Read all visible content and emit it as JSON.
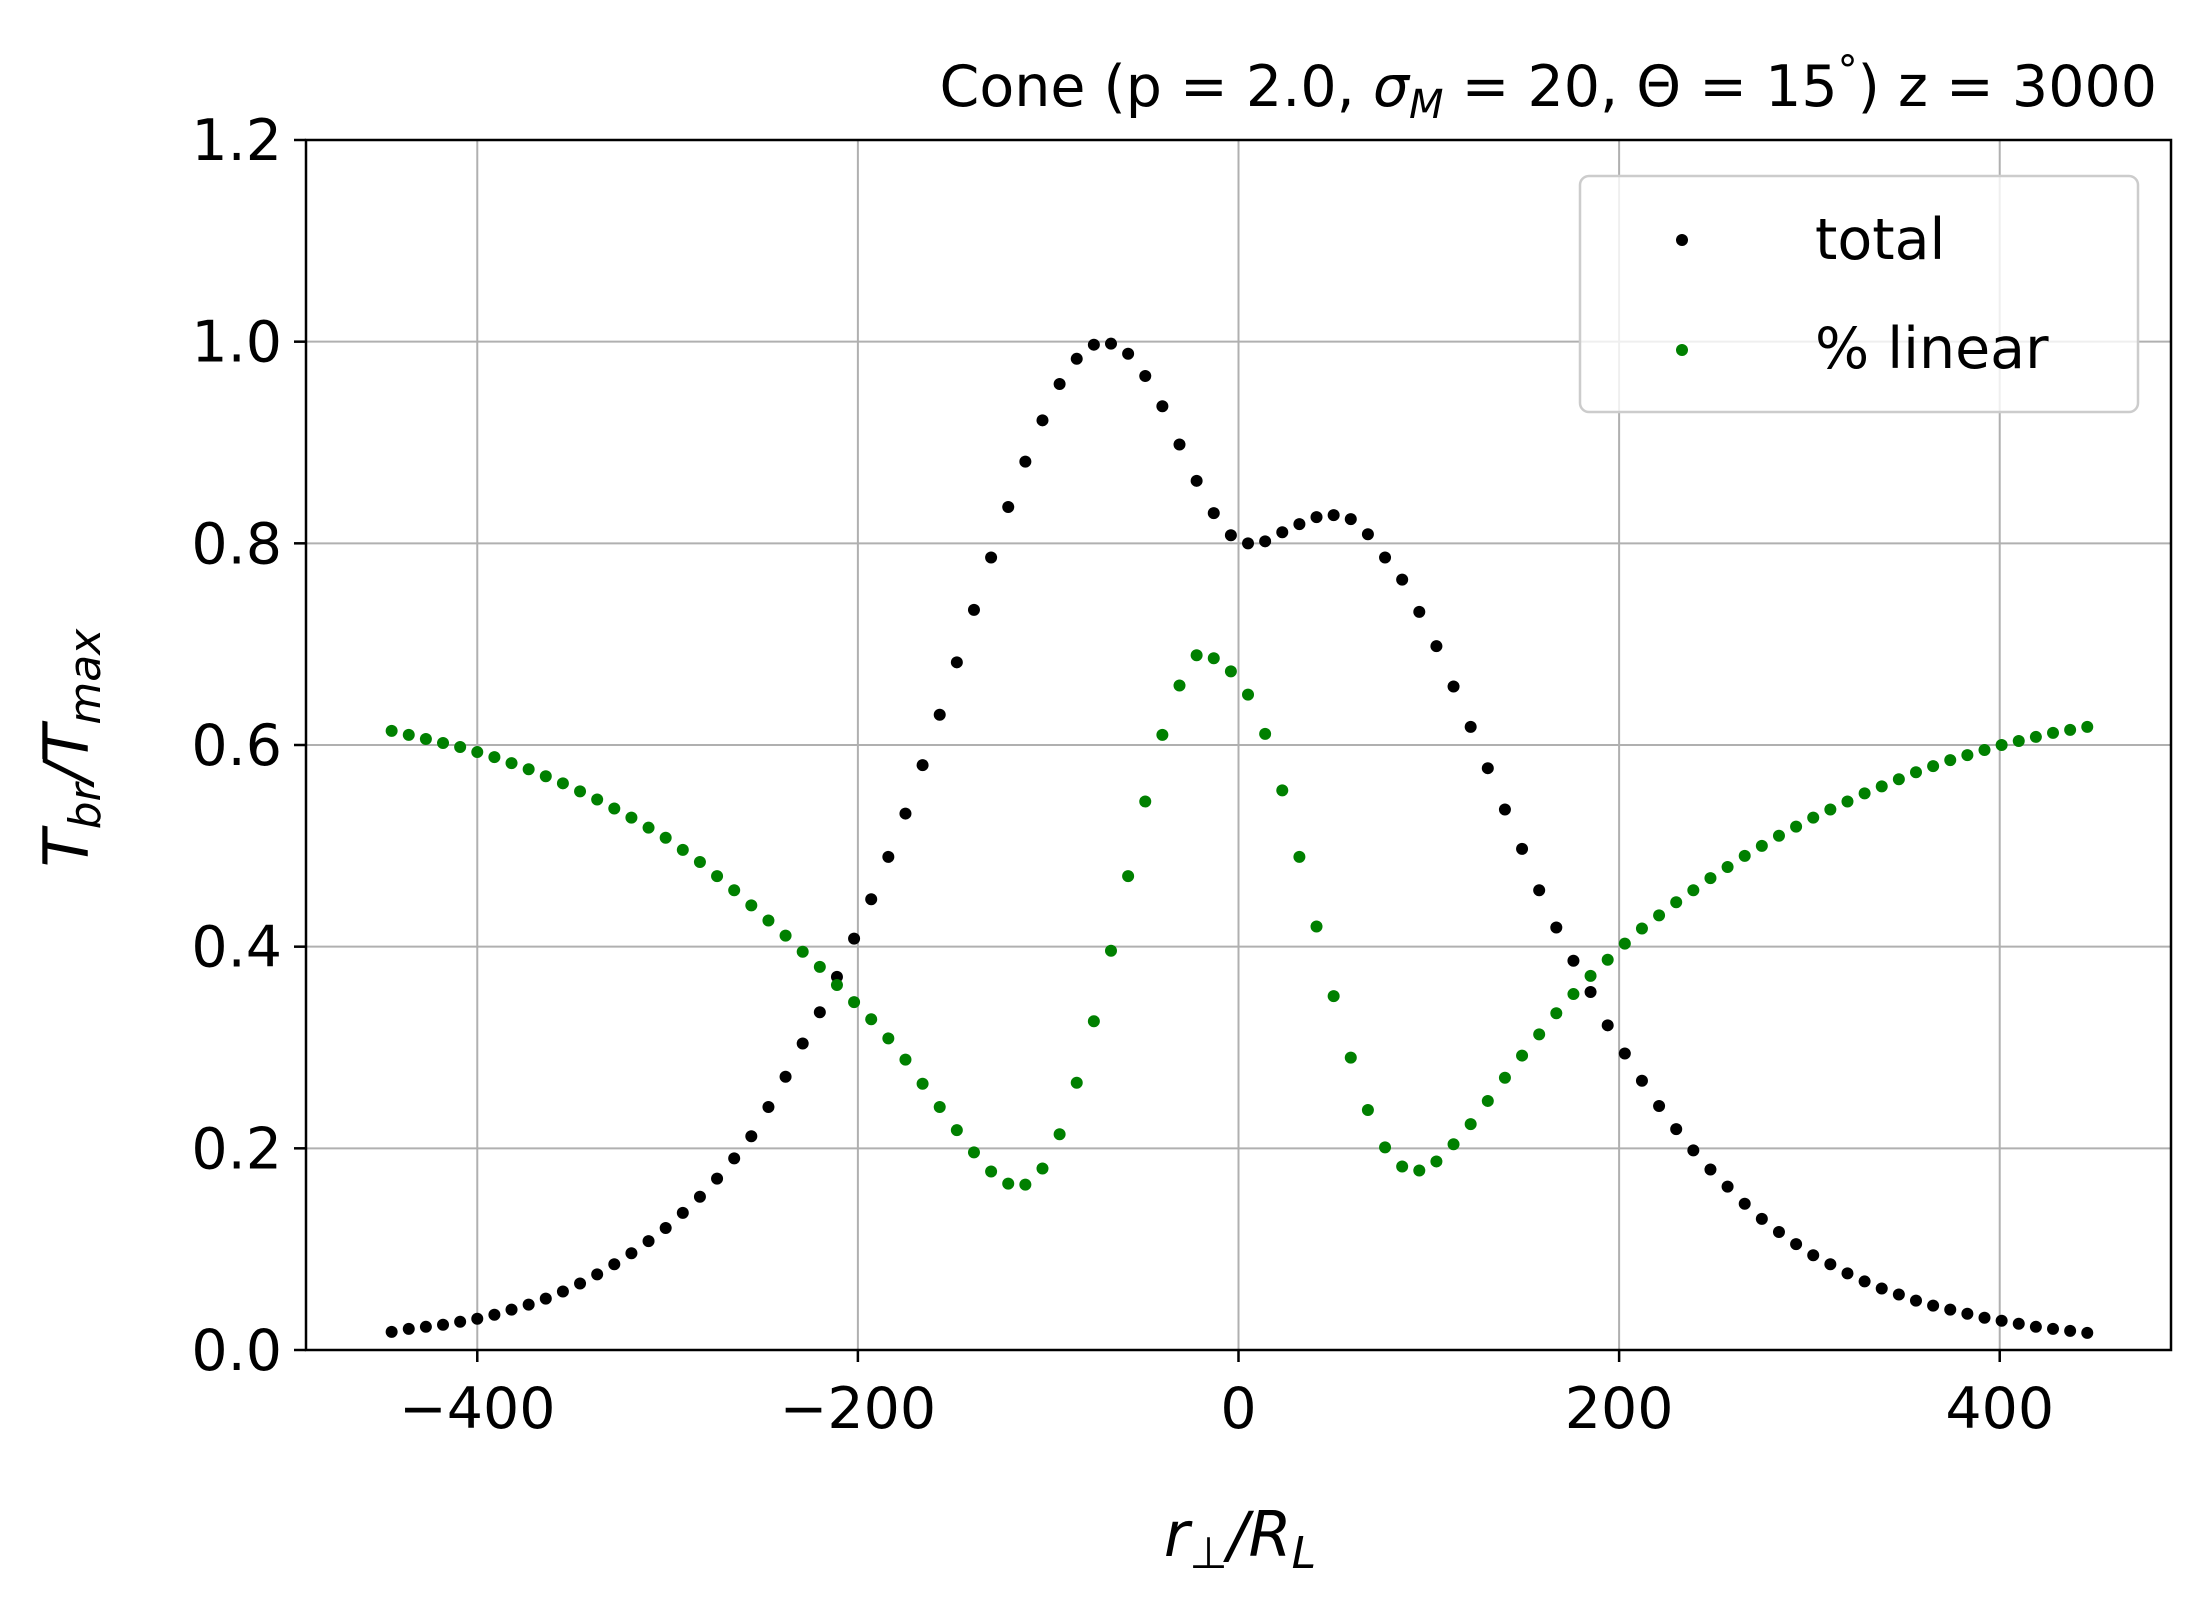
{
  "chart_data": {
    "type": "scatter",
    "title": {
      "prefix": "Cone  (p = 2.0, ",
      "sigma": "σ",
      "sigma_sub": "M",
      "middle": " = 20, Θ = 15",
      "degree": "°",
      "suffix": ") z = 3000"
    },
    "xlabel": {
      "main": "r",
      "main_sub": "⊥",
      "slash": "/",
      "denom": "R",
      "denom_sub": "L"
    },
    "ylabel": {
      "main": "T",
      "main_sub": "br",
      "slash": "/",
      "denom": "T",
      "denom_sub": "max"
    },
    "xlim": [
      -490,
      490
    ],
    "ylim": [
      0.0,
      1.2
    ],
    "x_ticks": [
      -400,
      -200,
      0,
      200,
      400
    ],
    "x_tick_labels": [
      "−400",
      "−200",
      "0",
      "200",
      "400"
    ],
    "y_ticks": [
      0.0,
      0.2,
      0.4,
      0.6,
      0.8,
      1.0,
      1.2
    ],
    "y_tick_labels": [
      "0.0",
      "0.2",
      "0.4",
      "0.6",
      "0.8",
      "1.0",
      "1.2"
    ],
    "grid": true,
    "legend_position": "top-right",
    "series": [
      {
        "name": "total",
        "color": "#000000",
        "x": [
          -445,
          -436,
          -427,
          -418,
          -409,
          -400,
          -391,
          -382,
          -373,
          -364,
          -355,
          -346,
          -337,
          -328,
          -319,
          -310,
          -301,
          -292,
          -283,
          -274,
          -265,
          -256,
          -247,
          -238,
          -229,
          -220,
          -211,
          -202,
          -193,
          -184,
          -175,
          -166,
          -157,
          -148,
          -139,
          -130,
          -121,
          -112,
          -103,
          -94,
          -85,
          -76,
          -67,
          -58,
          -49,
          -40,
          -31,
          -22,
          -13,
          -4,
          5,
          14,
          23,
          32,
          41,
          50,
          59,
          68,
          77,
          86,
          95,
          104,
          113,
          122,
          131,
          140,
          149,
          158,
          167,
          176,
          185,
          194,
          203,
          212,
          221,
          230,
          239,
          248,
          257,
          266,
          275,
          284,
          293,
          302,
          311,
          320,
          329,
          338,
          347,
          356,
          365,
          374,
          383,
          392,
          401,
          410,
          419,
          428,
          437,
          446
        ],
        "y": [
          0.018,
          0.021,
          0.023,
          0.025,
          0.028,
          0.031,
          0.035,
          0.04,
          0.045,
          0.051,
          0.058,
          0.066,
          0.075,
          0.085,
          0.096,
          0.108,
          0.121,
          0.136,
          0.152,
          0.17,
          0.19,
          0.212,
          0.241,
          0.271,
          0.304,
          0.335,
          0.37,
          0.408,
          0.447,
          0.489,
          0.532,
          0.58,
          0.63,
          0.682,
          0.734,
          0.786,
          0.836,
          0.881,
          0.922,
          0.958,
          0.983,
          0.997,
          0.998,
          0.988,
          0.966,
          0.936,
          0.898,
          0.862,
          0.83,
          0.808,
          0.8,
          0.802,
          0.811,
          0.819,
          0.826,
          0.828,
          0.824,
          0.809,
          0.786,
          0.764,
          0.732,
          0.698,
          0.658,
          0.618,
          0.577,
          0.536,
          0.497,
          0.456,
          0.419,
          0.386,
          0.355,
          0.322,
          0.294,
          0.267,
          0.242,
          0.219,
          0.198,
          0.179,
          0.162,
          0.145,
          0.13,
          0.117,
          0.105,
          0.094,
          0.085,
          0.076,
          0.068,
          0.061,
          0.055,
          0.049,
          0.044,
          0.04,
          0.036,
          0.032,
          0.029,
          0.026,
          0.023,
          0.021,
          0.019,
          0.017
        ]
      },
      {
        "name": "% linear",
        "color": "#008000",
        "x": [
          -445,
          -436,
          -427,
          -418,
          -409,
          -400,
          -391,
          -382,
          -373,
          -364,
          -355,
          -346,
          -337,
          -328,
          -319,
          -310,
          -301,
          -292,
          -283,
          -274,
          -265,
          -256,
          -247,
          -238,
          -229,
          -220,
          -211,
          -202,
          -193,
          -184,
          -175,
          -166,
          -157,
          -148,
          -139,
          -130,
          -121,
          -112,
          -103,
          -94,
          -85,
          -76,
          -67,
          -58,
          -49,
          -40,
          -31,
          -22,
          -13,
          -4,
          5,
          14,
          23,
          32,
          41,
          50,
          59,
          68,
          77,
          86,
          95,
          104,
          113,
          122,
          131,
          140,
          149,
          158,
          167,
          176,
          185,
          194,
          203,
          212,
          221,
          230,
          239,
          248,
          257,
          266,
          275,
          284,
          293,
          302,
          311,
          320,
          329,
          338,
          347,
          356,
          365,
          374,
          383,
          392,
          401,
          410,
          419,
          428,
          437,
          446
        ],
        "y": [
          0.614,
          0.61,
          0.606,
          0.602,
          0.598,
          0.593,
          0.588,
          0.582,
          0.576,
          0.569,
          0.562,
          0.554,
          0.546,
          0.537,
          0.528,
          0.518,
          0.508,
          0.496,
          0.484,
          0.47,
          0.456,
          0.441,
          0.426,
          0.411,
          0.395,
          0.38,
          0.362,
          0.345,
          0.328,
          0.309,
          0.288,
          0.264,
          0.241,
          0.218,
          0.196,
          0.177,
          0.165,
          0.164,
          0.18,
          0.214,
          0.265,
          0.326,
          0.396,
          0.47,
          0.544,
          0.61,
          0.659,
          0.689,
          0.686,
          0.673,
          0.65,
          0.611,
          0.555,
          0.489,
          0.42,
          0.351,
          0.29,
          0.238,
          0.201,
          0.182,
          0.178,
          0.187,
          0.204,
          0.224,
          0.247,
          0.27,
          0.292,
          0.313,
          0.334,
          0.353,
          0.371,
          0.387,
          0.403,
          0.418,
          0.431,
          0.444,
          0.456,
          0.468,
          0.479,
          0.49,
          0.5,
          0.51,
          0.519,
          0.528,
          0.536,
          0.544,
          0.552,
          0.559,
          0.566,
          0.573,
          0.579,
          0.585,
          0.59,
          0.595,
          0.6,
          0.604,
          0.608,
          0.612,
          0.615,
          0.618
        ]
      }
    ]
  }
}
